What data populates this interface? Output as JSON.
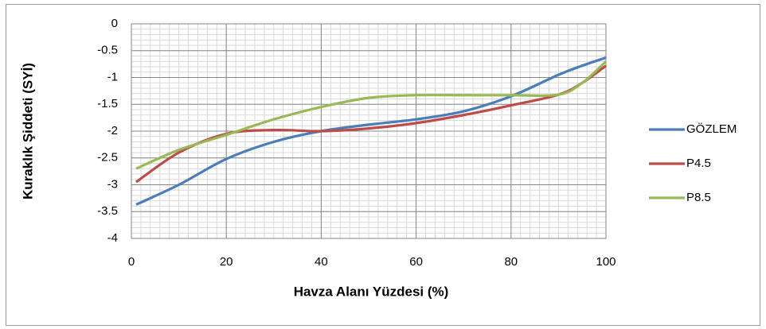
{
  "chart_data": {
    "type": "line",
    "x_label": "Havza Alanı Yüzdesi (%)",
    "y_label": "Kuraklık Şiddeti (SYİ)",
    "x": [
      1,
      10,
      20,
      30,
      40,
      50,
      60,
      70,
      80,
      90,
      95,
      100
    ],
    "series": [
      {
        "name": "GÖZLEM",
        "color": "#4a7ebb",
        "values": [
          -3.37,
          -3.0,
          -2.52,
          -2.2,
          -2.0,
          -1.88,
          -1.78,
          -1.63,
          -1.35,
          -0.95,
          -0.78,
          -0.63
        ]
      },
      {
        "name": "P4.5",
        "color": "#be4b48",
        "values": [
          -2.95,
          -2.4,
          -2.05,
          -1.98,
          -2.0,
          -1.95,
          -1.85,
          -1.7,
          -1.52,
          -1.32,
          -1.1,
          -0.78
        ]
      },
      {
        "name": "P8.5",
        "color": "#98b954",
        "values": [
          -2.7,
          -2.35,
          -2.07,
          -1.78,
          -1.55,
          -1.38,
          -1.33,
          -1.33,
          -1.33,
          -1.32,
          -1.1,
          -0.7
        ]
      }
    ],
    "xlim": [
      0,
      100
    ],
    "xticks": [
      0,
      20,
      40,
      60,
      80,
      100
    ],
    "ylim": [
      -4,
      0
    ],
    "yticks": [
      0,
      -0.5,
      -1,
      -1.5,
      -2,
      -2.5,
      -3,
      -3.5,
      -4
    ],
    "grid": true,
    "minor_grid": {
      "x": 2,
      "y": 0.1
    },
    "legend": "right"
  }
}
